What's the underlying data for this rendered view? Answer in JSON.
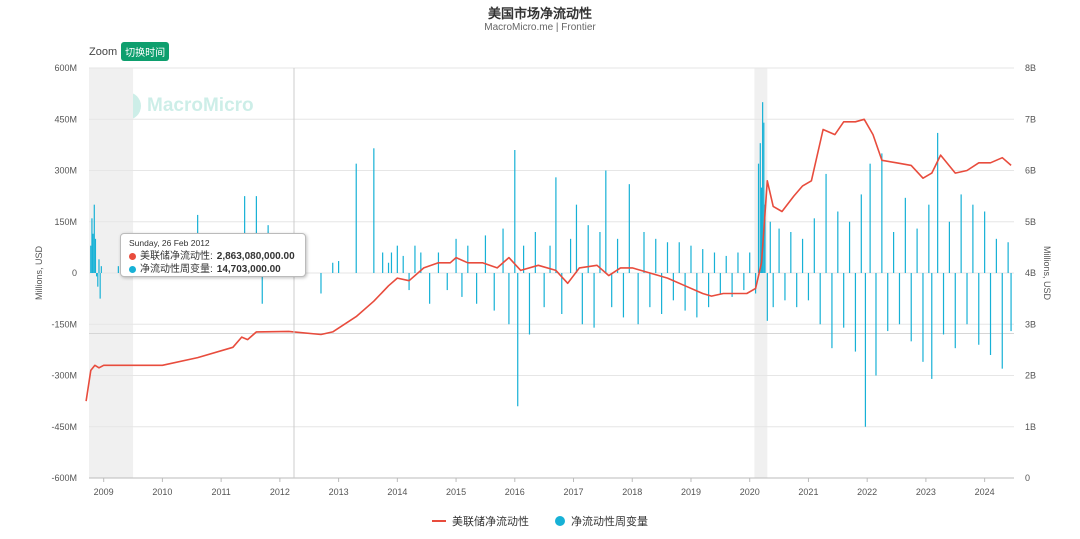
{
  "header": {
    "title": "美国市场净流动性",
    "subtitle": "MacroMicro.me | Frontier"
  },
  "zoom": {
    "label": "Zoom",
    "button": "切换时间"
  },
  "watermark": "MacroMicro",
  "colors": {
    "line": "#e84c3d",
    "bars": "#17b1d6",
    "recession": "#f0f0f0",
    "zoom_button": "#0e9f6e"
  },
  "tooltip": {
    "date": "Sunday, 26 Feb 2012",
    "rows": [
      {
        "label": "美联储净流动性:",
        "value": "2,863,080,000.00",
        "color": "#e84c3d"
      },
      {
        "label": "净流动性周变量:",
        "value": "14,703,000.00",
        "color": "#17b1d6"
      }
    ]
  },
  "legend": {
    "line_label": "美联储净流动性",
    "bar_label": "净流动性周变量"
  },
  "chart_data": {
    "type": "line+bar",
    "title": "美国市场净流动性",
    "subtitle": "MacroMicro.me | Frontier",
    "xlabel": "",
    "y_left_label": "Millions, USD",
    "y_right_label": "Millions, USD",
    "x_range": [
      2008.75,
      2024.5
    ],
    "x_ticks": [
      "2009",
      "2010",
      "2011",
      "2012",
      "2013",
      "2014",
      "2015",
      "2016",
      "2017",
      "2018",
      "2019",
      "2020",
      "2021",
      "2022",
      "2023",
      "2024"
    ],
    "y_left_ticks": [
      "600M",
      "450M",
      "300M",
      "150M",
      "0",
      "-150M",
      "-300M",
      "-450M",
      "-600M"
    ],
    "y_left_range_millions": [
      -600,
      600
    ],
    "y_right_ticks": [
      "8B",
      "7B",
      "6B",
      "5B",
      "4B",
      "3B",
      "2B",
      "1B",
      "0"
    ],
    "y_right_range_billions": [
      0,
      8
    ],
    "recession_shading": [
      [
        2008.75,
        2009.5
      ],
      [
        2020.08,
        2020.3
      ]
    ],
    "grid": true,
    "legend_position": "bottom",
    "series": [
      {
        "name": "美联储净流动性",
        "type": "line",
        "axis": "right",
        "unit": "B USD",
        "points": [
          [
            2008.7,
            1.5
          ],
          [
            2008.78,
            2.1
          ],
          [
            2008.85,
            2.2
          ],
          [
            2008.92,
            2.15
          ],
          [
            2009.0,
            2.2
          ],
          [
            2009.5,
            2.2
          ],
          [
            2010.0,
            2.2
          ],
          [
            2010.6,
            2.35
          ],
          [
            2011.2,
            2.55
          ],
          [
            2011.35,
            2.75
          ],
          [
            2011.45,
            2.7
          ],
          [
            2011.6,
            2.85
          ],
          [
            2012.15,
            2.86
          ],
          [
            2012.7,
            2.8
          ],
          [
            2012.9,
            2.85
          ],
          [
            2013.3,
            3.15
          ],
          [
            2013.6,
            3.45
          ],
          [
            2013.85,
            3.75
          ],
          [
            2014.0,
            3.9
          ],
          [
            2014.2,
            3.85
          ],
          [
            2014.45,
            4.1
          ],
          [
            2014.7,
            4.2
          ],
          [
            2014.9,
            4.2
          ],
          [
            2015.0,
            4.3
          ],
          [
            2015.2,
            4.2
          ],
          [
            2015.45,
            4.2
          ],
          [
            2015.7,
            4.1
          ],
          [
            2015.9,
            4.3
          ],
          [
            2016.1,
            4.05
          ],
          [
            2016.4,
            4.15
          ],
          [
            2016.7,
            4.05
          ],
          [
            2016.9,
            3.8
          ],
          [
            2017.1,
            4.1
          ],
          [
            2017.4,
            4.15
          ],
          [
            2017.6,
            3.95
          ],
          [
            2017.8,
            4.1
          ],
          [
            2018.0,
            4.1
          ],
          [
            2018.3,
            4.0
          ],
          [
            2018.6,
            3.9
          ],
          [
            2018.9,
            3.75
          ],
          [
            2019.2,
            3.6
          ],
          [
            2019.35,
            3.55
          ],
          [
            2019.55,
            3.6
          ],
          [
            2019.75,
            3.6
          ],
          [
            2019.95,
            3.6
          ],
          [
            2020.1,
            3.7
          ],
          [
            2020.2,
            4.2
          ],
          [
            2020.3,
            5.8
          ],
          [
            2020.4,
            5.3
          ],
          [
            2020.55,
            5.2
          ],
          [
            2020.75,
            5.5
          ],
          [
            2020.9,
            5.7
          ],
          [
            2021.05,
            5.8
          ],
          [
            2021.25,
            6.8
          ],
          [
            2021.45,
            6.7
          ],
          [
            2021.6,
            6.95
          ],
          [
            2021.8,
            6.95
          ],
          [
            2021.95,
            7.0
          ],
          [
            2022.1,
            6.7
          ],
          [
            2022.25,
            6.2
          ],
          [
            2022.5,
            6.15
          ],
          [
            2022.75,
            6.1
          ],
          [
            2022.95,
            5.85
          ],
          [
            2023.1,
            5.95
          ],
          [
            2023.25,
            6.3
          ],
          [
            2023.5,
            5.95
          ],
          [
            2023.7,
            6.0
          ],
          [
            2023.9,
            6.15
          ],
          [
            2024.1,
            6.15
          ],
          [
            2024.3,
            6.25
          ],
          [
            2024.45,
            6.1
          ]
        ]
      },
      {
        "name": "净流动性周变量",
        "type": "bar",
        "axis": "left",
        "unit": "M USD",
        "points": [
          [
            2008.78,
            80
          ],
          [
            2008.8,
            160
          ],
          [
            2008.82,
            115
          ],
          [
            2008.84,
            200
          ],
          [
            2008.86,
            100
          ],
          [
            2008.88,
            -10
          ],
          [
            2008.9,
            -40
          ],
          [
            2008.92,
            40
          ],
          [
            2008.94,
            -75
          ],
          [
            2008.96,
            20
          ],
          [
            2009.25,
            20
          ],
          [
            2010.3,
            10
          ],
          [
            2010.6,
            170
          ],
          [
            2011.2,
            20
          ],
          [
            2011.4,
            225
          ],
          [
            2011.5,
            20
          ],
          [
            2011.6,
            225
          ],
          [
            2011.7,
            -90
          ],
          [
            2011.8,
            140
          ],
          [
            2012.15,
            15
          ],
          [
            2012.7,
            -60
          ],
          [
            2012.9,
            30
          ],
          [
            2013.0,
            35
          ],
          [
            2013.3,
            320
          ],
          [
            2013.6,
            365
          ],
          [
            2013.75,
            60
          ],
          [
            2013.85,
            30
          ],
          [
            2013.9,
            60
          ],
          [
            2014.0,
            80
          ],
          [
            2014.1,
            50
          ],
          [
            2014.2,
            -50
          ],
          [
            2014.3,
            80
          ],
          [
            2014.4,
            60
          ],
          [
            2014.55,
            -90
          ],
          [
            2014.7,
            60
          ],
          [
            2014.85,
            -50
          ],
          [
            2015.0,
            100
          ],
          [
            2015.1,
            -70
          ],
          [
            2015.2,
            80
          ],
          [
            2015.35,
            -90
          ],
          [
            2015.5,
            110
          ],
          [
            2015.65,
            -110
          ],
          [
            2015.8,
            130
          ],
          [
            2015.9,
            -150
          ],
          [
            2016.0,
            360
          ],
          [
            2016.05,
            -390
          ],
          [
            2016.15,
            80
          ],
          [
            2016.25,
            -180
          ],
          [
            2016.35,
            120
          ],
          [
            2016.5,
            -100
          ],
          [
            2016.6,
            80
          ],
          [
            2016.7,
            280
          ],
          [
            2016.8,
            -120
          ],
          [
            2016.95,
            100
          ],
          [
            2017.05,
            200
          ],
          [
            2017.15,
            -150
          ],
          [
            2017.25,
            140
          ],
          [
            2017.35,
            -160
          ],
          [
            2017.45,
            120
          ],
          [
            2017.55,
            300
          ],
          [
            2017.65,
            -100
          ],
          [
            2017.75,
            100
          ],
          [
            2017.85,
            -130
          ],
          [
            2017.95,
            260
          ],
          [
            2018.1,
            -150
          ],
          [
            2018.2,
            120
          ],
          [
            2018.3,
            -100
          ],
          [
            2018.4,
            100
          ],
          [
            2018.5,
            -120
          ],
          [
            2018.6,
            90
          ],
          [
            2018.7,
            -80
          ],
          [
            2018.8,
            90
          ],
          [
            2018.9,
            -110
          ],
          [
            2019.0,
            80
          ],
          [
            2019.1,
            -130
          ],
          [
            2019.2,
            70
          ],
          [
            2019.3,
            -100
          ],
          [
            2019.4,
            60
          ],
          [
            2019.5,
            -60
          ],
          [
            2019.6,
            50
          ],
          [
            2019.7,
            -70
          ],
          [
            2019.8,
            60
          ],
          [
            2019.9,
            -50
          ],
          [
            2020.0,
            60
          ],
          [
            2020.1,
            -60
          ],
          [
            2020.15,
            320
          ],
          [
            2020.18,
            380
          ],
          [
            2020.2,
            250
          ],
          [
            2020.22,
            500
          ],
          [
            2020.24,
            440
          ],
          [
            2020.26,
            200
          ],
          [
            2020.3,
            -140
          ],
          [
            2020.35,
            150
          ],
          [
            2020.4,
            -100
          ],
          [
            2020.5,
            130
          ],
          [
            2020.6,
            -80
          ],
          [
            2020.7,
            120
          ],
          [
            2020.8,
            -100
          ],
          [
            2020.9,
            100
          ],
          [
            2021.0,
            -80
          ],
          [
            2021.1,
            160
          ],
          [
            2021.2,
            -150
          ],
          [
            2021.3,
            290
          ],
          [
            2021.4,
            -220
          ],
          [
            2021.5,
            180
          ],
          [
            2021.6,
            -160
          ],
          [
            2021.7,
            150
          ],
          [
            2021.8,
            -230
          ],
          [
            2021.9,
            230
          ],
          [
            2021.97,
            -450
          ],
          [
            2022.05,
            320
          ],
          [
            2022.15,
            -300
          ],
          [
            2022.25,
            350
          ],
          [
            2022.35,
            -170
          ],
          [
            2022.45,
            120
          ],
          [
            2022.55,
            -150
          ],
          [
            2022.65,
            220
          ],
          [
            2022.75,
            -200
          ],
          [
            2022.85,
            130
          ],
          [
            2022.95,
            -260
          ],
          [
            2023.05,
            200
          ],
          [
            2023.1,
            -310
          ],
          [
            2023.2,
            410
          ],
          [
            2023.3,
            -180
          ],
          [
            2023.4,
            150
          ],
          [
            2023.5,
            -220
          ],
          [
            2023.6,
            230
          ],
          [
            2023.7,
            -150
          ],
          [
            2023.8,
            200
          ],
          [
            2023.9,
            -210
          ],
          [
            2024.0,
            180
          ],
          [
            2024.1,
            -240
          ],
          [
            2024.2,
            100
          ],
          [
            2024.3,
            -280
          ],
          [
            2024.4,
            90
          ],
          [
            2024.45,
            -170
          ]
        ]
      }
    ]
  }
}
